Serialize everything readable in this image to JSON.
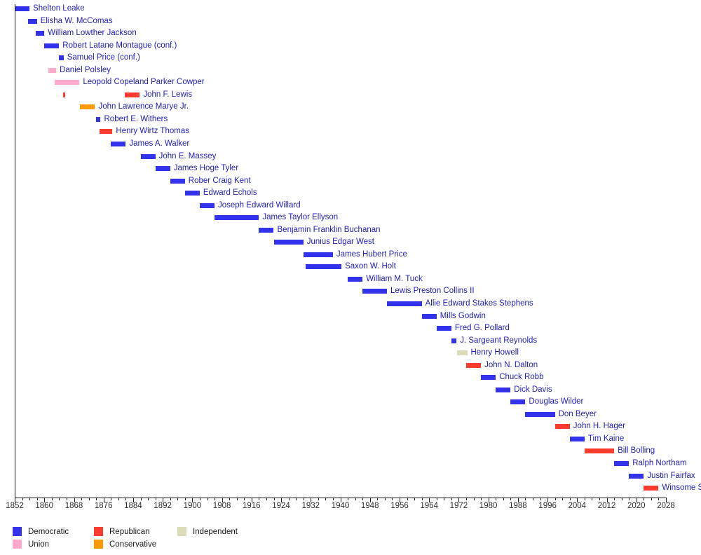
{
  "chart_data": {
    "type": "timeline",
    "description": "Timeline of lieutenant governors of Virginia by party",
    "axis": {
      "start": 1852,
      "end": 2028,
      "minor_tick_step": 2,
      "major_tick_step": 8,
      "tick_labels": [
        1852,
        1860,
        1868,
        1876,
        1884,
        1892,
        1900,
        1908,
        1916,
        1924,
        1932,
        1940,
        1948,
        1956,
        1964,
        1972,
        1980,
        1988,
        1996,
        2004,
        2012,
        2020,
        2028
      ]
    },
    "parties": {
      "democratic": "#3333EE",
      "republican": "#FA3B2D",
      "union": "#FFAACC",
      "conservative": "#FF9900",
      "independent": "#DBDBB9"
    },
    "rows": [
      {
        "name": "Shelton Leake",
        "party": "democratic",
        "terms": [
          [
            1852,
            1856
          ]
        ]
      },
      {
        "name": "Elisha W. McComas",
        "party": "democratic",
        "terms": [
          [
            1855.5,
            1858
          ]
        ]
      },
      {
        "name": "William Lowther Jackson",
        "party": "democratic",
        "terms": [
          [
            1857.6,
            1860
          ]
        ]
      },
      {
        "name": "Robert Latane Montague (conf.)",
        "party": "democratic",
        "terms": [
          [
            1860,
            1864
          ]
        ]
      },
      {
        "name": "Samuel Price (conf.)",
        "party": "democratic",
        "terms": [
          [
            1864,
            1865.2
          ]
        ]
      },
      {
        "name": "Daniel Polsley",
        "party": "union",
        "terms": [
          [
            1861,
            1863.2
          ]
        ]
      },
      {
        "name": "Leopold Copeland Parker Cowper",
        "party": "union",
        "terms": [
          [
            1862.7,
            1869.5
          ]
        ]
      },
      {
        "name": "John F. Lewis",
        "party": "republican",
        "terms": [
          [
            1865,
            1865.6
          ],
          [
            1881.7,
            1885.8
          ]
        ]
      },
      {
        "name": "John Lawrence Marye Jr.",
        "party": "conservative",
        "terms": [
          [
            1869.6,
            1873.7
          ]
        ]
      },
      {
        "name": "Robert E. Withers",
        "party": "democratic",
        "terms": [
          [
            1874,
            1875.2
          ]
        ]
      },
      {
        "name": "Henry Wirtz Thomas",
        "party": "republican",
        "terms": [
          [
            1875,
            1878.4
          ]
        ]
      },
      {
        "name": "James A. Walker",
        "party": "democratic",
        "terms": [
          [
            1878,
            1882
          ]
        ]
      },
      {
        "name": "John E. Massey",
        "party": "democratic",
        "terms": [
          [
            1886,
            1890
          ]
        ]
      },
      {
        "name": "James Hoge Tyler",
        "party": "democratic",
        "terms": [
          [
            1890,
            1894
          ]
        ]
      },
      {
        "name": "Rober Craig Kent",
        "party": "democratic",
        "terms": [
          [
            1894,
            1898
          ]
        ]
      },
      {
        "name": "Edward Echols",
        "party": "democratic",
        "terms": [
          [
            1898,
            1902
          ]
        ]
      },
      {
        "name": "Joseph Edward Willard",
        "party": "democratic",
        "terms": [
          [
            1902,
            1906
          ]
        ]
      },
      {
        "name": "James Taylor Ellyson",
        "party": "democratic",
        "terms": [
          [
            1906,
            1918
          ]
        ]
      },
      {
        "name": "Benjamin Franklin Buchanan",
        "party": "democratic",
        "terms": [
          [
            1918,
            1922
          ]
        ]
      },
      {
        "name": "Junius Edgar West",
        "party": "democratic",
        "terms": [
          [
            1922,
            1930
          ]
        ]
      },
      {
        "name": "James Hubert Price",
        "party": "democratic",
        "terms": [
          [
            1930,
            1938
          ]
        ]
      },
      {
        "name": "Saxon W. Holt",
        "party": "democratic",
        "terms": [
          [
            1930.7,
            1940.3
          ]
        ]
      },
      {
        "name": "William M. Tuck",
        "party": "democratic",
        "terms": [
          [
            1942,
            1946
          ]
        ]
      },
      {
        "name": "Lewis Preston Collins II",
        "party": "democratic",
        "terms": [
          [
            1946,
            1952.6
          ]
        ]
      },
      {
        "name": "Allie Edward Stakes Stephens",
        "party": "democratic",
        "terms": [
          [
            1952.6,
            1962
          ]
        ]
      },
      {
        "name": "Mills Godwin",
        "party": "democratic",
        "terms": [
          [
            1962,
            1966
          ]
        ]
      },
      {
        "name": "Fred G. Pollard",
        "party": "democratic",
        "terms": [
          [
            1966,
            1970
          ]
        ]
      },
      {
        "name": "J. Sargeant Reynolds",
        "party": "democratic",
        "terms": [
          [
            1970,
            1971.4
          ]
        ]
      },
      {
        "name": "Henry Howell",
        "party": "independent",
        "terms": [
          [
            1971.5,
            1974.3
          ]
        ]
      },
      {
        "name": "John N. Dalton",
        "party": "republican",
        "terms": [
          [
            1974,
            1978
          ]
        ]
      },
      {
        "name": "Chuck Robb",
        "party": "democratic",
        "terms": [
          [
            1978,
            1982
          ]
        ]
      },
      {
        "name": "Dick Davis",
        "party": "democratic",
        "terms": [
          [
            1982,
            1986
          ]
        ]
      },
      {
        "name": "Douglas Wilder",
        "party": "democratic",
        "terms": [
          [
            1986,
            1990
          ]
        ]
      },
      {
        "name": "Don Beyer",
        "party": "democratic",
        "terms": [
          [
            1990,
            1998
          ]
        ]
      },
      {
        "name": "John H. Hager",
        "party": "republican",
        "terms": [
          [
            1998,
            2002
          ]
        ]
      },
      {
        "name": "Tim Kaine",
        "party": "democratic",
        "terms": [
          [
            2002,
            2006
          ]
        ]
      },
      {
        "name": "Bill Bolling",
        "party": "republican",
        "terms": [
          [
            2006,
            2014
          ]
        ]
      },
      {
        "name": "Ralph Northam",
        "party": "democratic",
        "terms": [
          [
            2014,
            2018
          ]
        ]
      },
      {
        "name": "Justin Fairfax",
        "party": "democratic",
        "terms": [
          [
            2018,
            2022
          ]
        ]
      },
      {
        "name": "Winsome Sears",
        "party": "republican",
        "terms": [
          [
            2022,
            2026
          ]
        ]
      }
    ],
    "legend": [
      {
        "label": "Democratic",
        "party": "democratic"
      },
      {
        "label": "Republican",
        "party": "republican"
      },
      {
        "label": "Independent",
        "party": "independent"
      },
      {
        "label": "Union",
        "party": "union"
      },
      {
        "label": "Conservative",
        "party": "conservative"
      }
    ]
  }
}
